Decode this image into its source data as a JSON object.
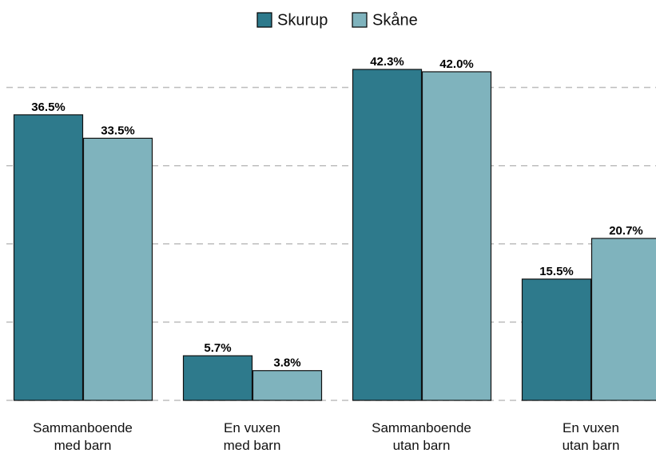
{
  "chart_data": {
    "type": "bar",
    "categories": [
      "Sammanboende\nmed barn",
      "En vuxen\nmed barn",
      "Sammanboende\nutan barn",
      "En vuxen\nutan barn"
    ],
    "series": [
      {
        "name": "Skurup",
        "color": "#2e7a8c",
        "values": [
          36.5,
          5.7,
          42.3,
          15.5
        ],
        "value_labels": [
          "36.5%",
          "5.7%",
          "42.3%",
          "15.5%"
        ]
      },
      {
        "name": "Skåne",
        "color": "#7fb3bd",
        "values": [
          33.5,
          3.8,
          42.0,
          20.7
        ],
        "value_labels": [
          "33.5%",
          "3.8%",
          "42.0%",
          "20.7%"
        ]
      }
    ],
    "ylim": [
      0,
      44
    ],
    "yticks": [
      0,
      10,
      20,
      30,
      40
    ],
    "grid": true,
    "legend": "top"
  }
}
